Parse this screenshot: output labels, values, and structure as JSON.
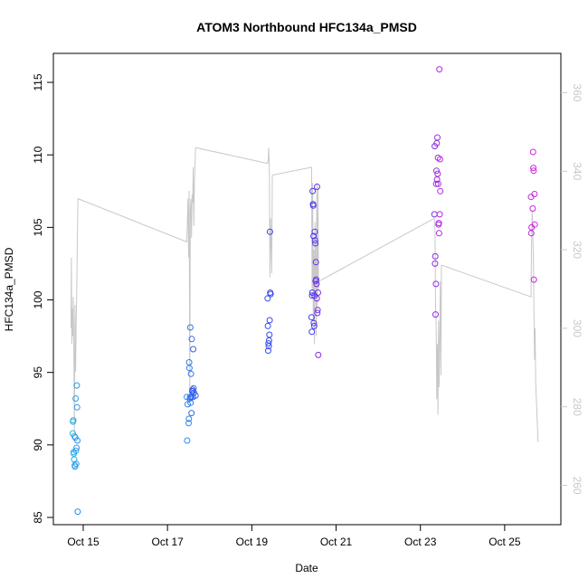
{
  "chart_data": {
    "type": "scatter",
    "title": "ATOM3 Northbound HFC134a_PMSD",
    "xlabel": "Date",
    "ylabel": "HFC134a_PMSD",
    "x_date_format": "%b %d",
    "xlim": [
      "2016-10-14 07:00",
      "2016-10-26 08:00"
    ],
    "ylim": [
      84.5,
      117
    ],
    "y2lim": [
      250,
      370
    ],
    "x_ticks": [
      "Oct 15",
      "Oct 17",
      "Oct 19",
      "Oct 21",
      "Oct 23",
      "Oct 25"
    ],
    "x_tick_values": [
      "2016-10-15 00:00",
      "2016-10-17 00:00",
      "2016-10-19 00:00",
      "2016-10-21 00:00",
      "2016-10-23 00:00",
      "2016-10-25 00:00"
    ],
    "y_ticks": [
      85,
      90,
      95,
      100,
      105,
      110,
      115
    ],
    "y2_ticks": [
      260,
      280,
      300,
      320,
      340,
      360
    ],
    "colors": {
      "line": "#c8c8c8",
      "axis": "#000000",
      "right_axis": "#c8c8c8",
      "points_start": "#29b6e8",
      "points_mid": "#3a3af0",
      "points_end": "#dd22dd"
    },
    "points": [
      {
        "x": "2016-10-14 18:00",
        "y": 90.8
      },
      {
        "x": "2016-10-14 18:10",
        "y": 91.6
      },
      {
        "x": "2016-10-14 18:20",
        "y": 91.7
      },
      {
        "x": "2016-10-14 18:30",
        "y": 89.5
      },
      {
        "x": "2016-10-14 18:40",
        "y": 89.4
      },
      {
        "x": "2016-10-14 18:50",
        "y": 89.0
      },
      {
        "x": "2016-10-14 19:00",
        "y": 90.6
      },
      {
        "x": "2016-10-14 19:10",
        "y": 88.6
      },
      {
        "x": "2016-10-14 19:20",
        "y": 88.5
      },
      {
        "x": "2016-10-14 19:30",
        "y": 90.5
      },
      {
        "x": "2016-10-14 19:40",
        "y": 93.2
      },
      {
        "x": "2016-10-14 19:50",
        "y": 89.6
      },
      {
        "x": "2016-10-14 20:00",
        "y": 88.7
      },
      {
        "x": "2016-10-14 20:10",
        "y": 89.8
      },
      {
        "x": "2016-10-14 20:20",
        "y": 94.1
      },
      {
        "x": "2016-10-14 20:30",
        "y": 92.6
      },
      {
        "x": "2016-10-14 20:40",
        "y": 90.3
      },
      {
        "x": "2016-10-14 20:50",
        "y": 85.4
      },
      {
        "x": "2016-10-17 11:00",
        "y": 93.3
      },
      {
        "x": "2016-10-17 11:10",
        "y": 90.3
      },
      {
        "x": "2016-10-17 11:30",
        "y": 92.8
      },
      {
        "x": "2016-10-17 12:00",
        "y": 91.5
      },
      {
        "x": "2016-10-17 12:10",
        "y": 91.8
      },
      {
        "x": "2016-10-17 12:20",
        "y": 95.7
      },
      {
        "x": "2016-10-17 12:30",
        "y": 95.3
      },
      {
        "x": "2016-10-17 12:40",
        "y": 93.2
      },
      {
        "x": "2016-10-17 12:50",
        "y": 93.3
      },
      {
        "x": "2016-10-17 13:00",
        "y": 98.1
      },
      {
        "x": "2016-10-17 13:10",
        "y": 92.9
      },
      {
        "x": "2016-10-17 13:20",
        "y": 94.9
      },
      {
        "x": "2016-10-17 13:30",
        "y": 93.3
      },
      {
        "x": "2016-10-17 13:40",
        "y": 92.2
      },
      {
        "x": "2016-10-17 13:50",
        "y": 97.3
      },
      {
        "x": "2016-10-17 14:00",
        "y": 93.7
      },
      {
        "x": "2016-10-17 14:10",
        "y": 93.8
      },
      {
        "x": "2016-10-17 14:20",
        "y": 93.7
      },
      {
        "x": "2016-10-17 14:30",
        "y": 93.3
      },
      {
        "x": "2016-10-17 14:40",
        "y": 96.6
      },
      {
        "x": "2016-10-17 14:50",
        "y": 93.9
      },
      {
        "x": "2016-10-17 15:00",
        "y": 93.6
      },
      {
        "x": "2016-10-17 16:00",
        "y": 93.4
      },
      {
        "x": "2016-10-19 09:00",
        "y": 100.1
      },
      {
        "x": "2016-10-19 09:10",
        "y": 98.2
      },
      {
        "x": "2016-10-19 09:20",
        "y": 96.5
      },
      {
        "x": "2016-10-19 09:30",
        "y": 97.0
      },
      {
        "x": "2016-10-19 09:40",
        "y": 96.8
      },
      {
        "x": "2016-10-19 09:50",
        "y": 97.2
      },
      {
        "x": "2016-10-19 10:00",
        "y": 97.6
      },
      {
        "x": "2016-10-19 10:10",
        "y": 98.6
      },
      {
        "x": "2016-10-19 10:20",
        "y": 104.7
      },
      {
        "x": "2016-10-19 10:30",
        "y": 100.5
      },
      {
        "x": "2016-10-19 10:40",
        "y": 100.4
      },
      {
        "x": "2016-10-20 10:00",
        "y": 98.8
      },
      {
        "x": "2016-10-20 10:10",
        "y": 97.8
      },
      {
        "x": "2016-10-20 10:20",
        "y": 100.3
      },
      {
        "x": "2016-10-20 10:30",
        "y": 100.5
      },
      {
        "x": "2016-10-20 10:40",
        "y": 107.5
      },
      {
        "x": "2016-10-20 10:50",
        "y": 106.6
      },
      {
        "x": "2016-10-20 11:00",
        "y": 106.5
      },
      {
        "x": "2016-10-20 11:10",
        "y": 104.4
      },
      {
        "x": "2016-10-20 11:20",
        "y": 98.4
      },
      {
        "x": "2016-10-20 11:30",
        "y": 98.2
      },
      {
        "x": "2016-10-20 11:40",
        "y": 100.3
      },
      {
        "x": "2016-10-20 11:50",
        "y": 104.7
      },
      {
        "x": "2016-10-20 12:00",
        "y": 104.1
      },
      {
        "x": "2016-10-20 12:10",
        "y": 103.9
      },
      {
        "x": "2016-10-20 12:20",
        "y": 101.3
      },
      {
        "x": "2016-10-20 12:30",
        "y": 102.6
      },
      {
        "x": "2016-10-20 12:40",
        "y": 101.4
      },
      {
        "x": "2016-10-20 12:50",
        "y": 101.1
      },
      {
        "x": "2016-10-20 13:00",
        "y": 100.1
      },
      {
        "x": "2016-10-20 13:10",
        "y": 107.8
      },
      {
        "x": "2016-10-20 13:20",
        "y": 99.1
      },
      {
        "x": "2016-10-20 13:30",
        "y": 99.3
      },
      {
        "x": "2016-10-20 13:40",
        "y": 100.5
      },
      {
        "x": "2016-10-20 13:50",
        "y": 96.2
      },
      {
        "x": "2016-10-23 08:00",
        "y": 105.9
      },
      {
        "x": "2016-10-23 08:10",
        "y": 110.6
      },
      {
        "x": "2016-10-23 08:20",
        "y": 102.5
      },
      {
        "x": "2016-10-23 08:30",
        "y": 103.0
      },
      {
        "x": "2016-10-23 08:40",
        "y": 99.0
      },
      {
        "x": "2016-10-23 08:50",
        "y": 101.1
      },
      {
        "x": "2016-10-23 09:00",
        "y": 108.0
      },
      {
        "x": "2016-10-23 09:10",
        "y": 108.9
      },
      {
        "x": "2016-10-23 09:20",
        "y": 110.8
      },
      {
        "x": "2016-10-23 09:30",
        "y": 108.3
      },
      {
        "x": "2016-10-23 09:40",
        "y": 111.2
      },
      {
        "x": "2016-10-23 09:50",
        "y": 108.7
      },
      {
        "x": "2016-10-23 10:00",
        "y": 109.8
      },
      {
        "x": "2016-10-23 10:10",
        "y": 108.0
      },
      {
        "x": "2016-10-23 10:20",
        "y": 105.2
      },
      {
        "x": "2016-10-23 10:30",
        "y": 105.3
      },
      {
        "x": "2016-10-23 10:40",
        "y": 104.6
      },
      {
        "x": "2016-10-23 10:50",
        "y": 115.9
      },
      {
        "x": "2016-10-23 11:00",
        "y": 105.9
      },
      {
        "x": "2016-10-23 11:10",
        "y": 109.7
      },
      {
        "x": "2016-10-23 11:20",
        "y": 107.5
      },
      {
        "x": "2016-10-25 15:00",
        "y": 107.1
      },
      {
        "x": "2016-10-25 15:10",
        "y": 104.6
      },
      {
        "x": "2016-10-25 15:20",
        "y": 105.0
      },
      {
        "x": "2016-10-25 16:00",
        "y": 106.3
      },
      {
        "x": "2016-10-25 16:10",
        "y": 110.2
      },
      {
        "x": "2016-10-25 16:20",
        "y": 109.1
      },
      {
        "x": "2016-10-25 16:30",
        "y": 108.9
      },
      {
        "x": "2016-10-25 16:40",
        "y": 101.4
      },
      {
        "x": "2016-10-25 17:00",
        "y": 107.3
      },
      {
        "x": "2016-10-25 17:10",
        "y": 105.2
      }
    ],
    "line": [
      {
        "x": "2016-10-14 17:00",
        "y2": 300
      },
      {
        "x": "2016-10-14 17:15",
        "y2": 318
      },
      {
        "x": "2016-10-14 17:30",
        "y2": 296
      },
      {
        "x": "2016-10-14 17:45",
        "y2": 305
      },
      {
        "x": "2016-10-14 18:00",
        "y2": 298
      },
      {
        "x": "2016-10-14 18:20",
        "y2": 308
      },
      {
        "x": "2016-10-14 18:40",
        "y2": 295
      },
      {
        "x": "2016-10-14 19:00",
        "y2": 273
      },
      {
        "x": "2016-10-14 19:20",
        "y2": 306
      },
      {
        "x": "2016-10-14 19:40",
        "y2": 289
      },
      {
        "x": "2016-10-14 20:00",
        "y2": 302
      },
      {
        "x": "2016-10-14 20:20",
        "y2": 310
      },
      {
        "x": "2016-10-14 20:40",
        "y2": 323
      },
      {
        "x": "2016-10-14 21:00",
        "y2": 333
      },
      {
        "x": "2016-10-17 11:00",
        "y2": 322
      },
      {
        "x": "2016-10-17 11:20",
        "y2": 328
      },
      {
        "x": "2016-10-17 11:40",
        "y2": 333
      },
      {
        "x": "2016-10-17 12:00",
        "y2": 318
      },
      {
        "x": "2016-10-17 12:20",
        "y2": 335
      },
      {
        "x": "2016-10-17 12:40",
        "y2": 282
      },
      {
        "x": "2016-10-17 13:00",
        "y2": 330
      },
      {
        "x": "2016-10-17 13:20",
        "y2": 333
      },
      {
        "x": "2016-10-17 13:40",
        "y2": 323
      },
      {
        "x": "2016-10-17 14:00",
        "y2": 334
      },
      {
        "x": "2016-10-17 14:20",
        "y2": 332
      },
      {
        "x": "2016-10-17 14:40",
        "y2": 341
      },
      {
        "x": "2016-10-17 15:00",
        "y2": 326
      },
      {
        "x": "2016-10-17 15:20",
        "y2": 337
      },
      {
        "x": "2016-10-17 16:00",
        "y2": 346
      },
      {
        "x": "2016-10-19 09:00",
        "y2": 342
      },
      {
        "x": "2016-10-19 09:20",
        "y2": 343
      },
      {
        "x": "2016-10-19 09:40",
        "y2": 346
      },
      {
        "x": "2016-10-19 10:00",
        "y2": 339
      },
      {
        "x": "2016-10-19 10:20",
        "y2": 313
      },
      {
        "x": "2016-10-19 10:40",
        "y2": 328
      },
      {
        "x": "2016-10-19 11:00",
        "y2": 322
      },
      {
        "x": "2016-10-19 11:20",
        "y2": 314
      },
      {
        "x": "2016-10-19 11:40",
        "y2": 339
      },
      {
        "x": "2016-10-20 10:00",
        "y2": 341
      },
      {
        "x": "2016-10-20 10:20",
        "y2": 310
      },
      {
        "x": "2016-10-20 10:40",
        "y2": 337
      },
      {
        "x": "2016-10-20 11:00",
        "y2": 302
      },
      {
        "x": "2016-10-20 11:20",
        "y2": 320
      },
      {
        "x": "2016-10-20 11:40",
        "y2": 296
      },
      {
        "x": "2016-10-20 12:00",
        "y2": 327
      },
      {
        "x": "2016-10-20 12:20",
        "y2": 317
      },
      {
        "x": "2016-10-20 12:40",
        "y2": 298
      },
      {
        "x": "2016-10-20 13:00",
        "y2": 337
      },
      {
        "x": "2016-10-20 13:20",
        "y2": 305
      },
      {
        "x": "2016-10-20 13:40",
        "y2": 336
      },
      {
        "x": "2016-10-20 14:00",
        "y2": 310
      },
      {
        "x": "2016-10-20 14:20",
        "y2": 312
      },
      {
        "x": "2016-10-23 08:00",
        "y2": 328
      },
      {
        "x": "2016-10-23 08:20",
        "y2": 325
      },
      {
        "x": "2016-10-23 08:40",
        "y2": 305
      },
      {
        "x": "2016-10-23 09:00",
        "y2": 300
      },
      {
        "x": "2016-10-23 09:20",
        "y2": 282
      },
      {
        "x": "2016-10-23 09:40",
        "y2": 296
      },
      {
        "x": "2016-10-23 10:00",
        "y2": 278
      },
      {
        "x": "2016-10-23 10:20",
        "y2": 302
      },
      {
        "x": "2016-10-23 10:40",
        "y2": 285
      },
      {
        "x": "2016-10-23 11:00",
        "y2": 298
      },
      {
        "x": "2016-10-23 11:20",
        "y2": 312
      },
      {
        "x": "2016-10-23 11:40",
        "y2": 288
      },
      {
        "x": "2016-10-23 12:00",
        "y2": 316
      },
      {
        "x": "2016-10-23 12:30",
        "y2": 316
      },
      {
        "x": "2016-10-25 15:00",
        "y2": 308
      },
      {
        "x": "2016-10-25 15:20",
        "y2": 322
      },
      {
        "x": "2016-10-25 15:40",
        "y2": 330
      },
      {
        "x": "2016-10-25 16:00",
        "y2": 324
      },
      {
        "x": "2016-10-25 16:20",
        "y2": 318
      },
      {
        "x": "2016-10-25 16:40",
        "y2": 305
      },
      {
        "x": "2016-10-25 17:00",
        "y2": 292
      },
      {
        "x": "2016-10-25 17:20",
        "y2": 300
      },
      {
        "x": "2016-10-25 17:40",
        "y2": 286
      },
      {
        "x": "2016-10-25 19:00",
        "y2": 271
      }
    ]
  }
}
